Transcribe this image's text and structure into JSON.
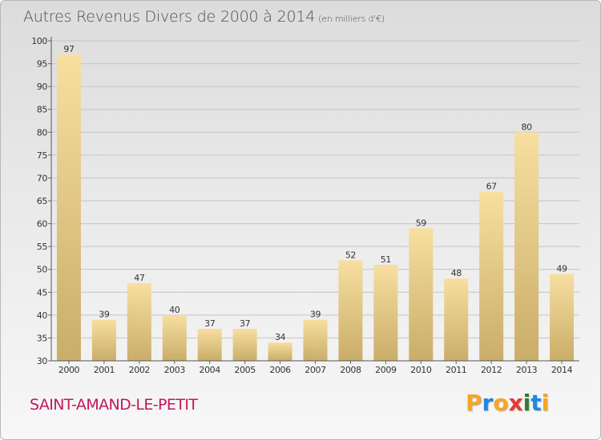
{
  "header": {
    "title": "Autres Revenus Divers de 2000 à 2014",
    "unit": "(en milliers d'€)"
  },
  "footer": {
    "commune": "SAINT-AMAND-LE-PETIT",
    "logo": [
      "P",
      "r",
      "o",
      "x",
      "i",
      "t",
      "i"
    ],
    "logo_colors": [
      "#f5a623",
      "#1e88e5",
      "#f5a623",
      "#e53935",
      "#2e7d32",
      "#1e88e5",
      "#f5a623"
    ]
  },
  "colors": {
    "bar_light": "#f8dfa0",
    "bar_dark": "#c9ad69",
    "grid": "#c4c4c4",
    "commune": "#c2185b"
  },
  "chart_data": {
    "type": "bar",
    "categories": [
      "2000",
      "2001",
      "2002",
      "2003",
      "2004",
      "2005",
      "2006",
      "2007",
      "2008",
      "2009",
      "2010",
      "2011",
      "2012",
      "2013",
      "2014"
    ],
    "values": [
      97,
      39,
      47,
      40,
      37,
      37,
      34,
      39,
      52,
      51,
      59,
      48,
      67,
      80,
      49
    ],
    "yticks": [
      30,
      35,
      40,
      45,
      50,
      55,
      60,
      65,
      70,
      75,
      80,
      85,
      90,
      95,
      100
    ],
    "ylim": [
      30,
      100
    ],
    "grid": true,
    "data_labels": true
  }
}
